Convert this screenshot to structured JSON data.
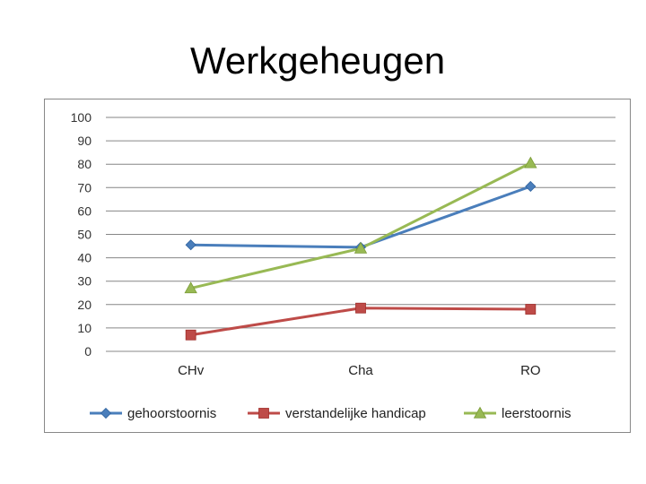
{
  "slide": {
    "title": "Werkgeheugen"
  },
  "chart_data": {
    "type": "line",
    "categories": [
      "CHv",
      "Cha",
      "RO"
    ],
    "ylim": [
      0,
      100
    ],
    "yticks": [
      0,
      10,
      20,
      30,
      40,
      50,
      60,
      70,
      80,
      90,
      100
    ],
    "grid": true,
    "legend_position": "bottom",
    "title": "",
    "xlabel": "",
    "ylabel": "",
    "series": [
      {
        "name": "gehoorstoornis",
        "values": [
          45.5,
          44.5,
          70.5
        ],
        "color": "#4a7ebb",
        "marker": "diamond"
      },
      {
        "name": "verstandelijke handicap",
        "values": [
          7,
          18.5,
          18
        ],
        "color": "#be4b48",
        "marker": "square"
      },
      {
        "name": "leerstoornis",
        "values": [
          27,
          44,
          80.5
        ],
        "color": "#98b954",
        "marker": "triangle"
      }
    ]
  }
}
